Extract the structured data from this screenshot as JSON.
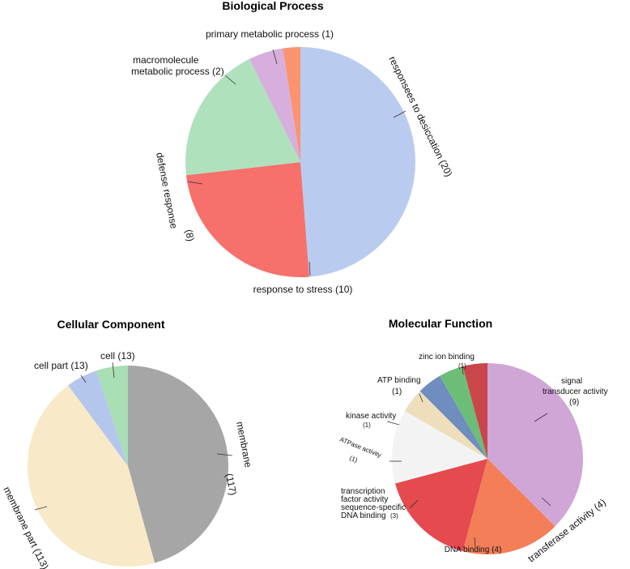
{
  "chart_data": [
    {
      "type": "pie",
      "title": "Biological Process",
      "slices": [
        {
          "label": "responsees to desiccation (20)",
          "value": 20,
          "color": "#b9ccef"
        },
        {
          "label": "response to stress (10)",
          "value": 10,
          "color": "#f7706b"
        },
        {
          "label": "defense response (8)",
          "value": 8,
          "color": "#afe1bd"
        },
        {
          "label": "macromolecule metabolic process (2)",
          "value": 2,
          "color": "#d6afdd"
        },
        {
          "label": "primary metabolic process (1)",
          "value": 1,
          "color": "#fb936e"
        }
      ]
    },
    {
      "type": "pie",
      "title": "Cellular Component",
      "slices": [
        {
          "label": "membrane (117)",
          "value": 117,
          "color": "#a6a6a6"
        },
        {
          "label": "membrane part (113)",
          "value": 113,
          "color": "#f8e9c9"
        },
        {
          "label": "cell part (13)",
          "value": 13,
          "color": "#b4c6ec"
        },
        {
          "label": "cell (13)",
          "value": 13,
          "color": "#a8dfb5"
        }
      ]
    },
    {
      "type": "pie",
      "title": "Molecular Function",
      "slices": [
        {
          "label": "signal transducer activity (9)",
          "value": 9,
          "color": "#cfa6d6"
        },
        {
          "label": "transferase activity (4)",
          "value": 4,
          "color": "#f37e58"
        },
        {
          "label": "DNA binding (4)",
          "value": 4,
          "color": "#e44a4e"
        },
        {
          "label": "transcription factor activity sequence-specific DNA binding (3)",
          "value": 3,
          "color": "#f3f3f3"
        },
        {
          "label": "ATPase activity (1)",
          "value": 1,
          "color": "#eedebb"
        },
        {
          "label": "kinase activity (1)",
          "value": 1,
          "color": "#6f8dbf"
        },
        {
          "label": "ATP binding (1)",
          "value": 1,
          "color": "#6cbd78"
        },
        {
          "label": "zinc ion binding (1)",
          "value": 1,
          "color": "#c9474a"
        }
      ]
    }
  ],
  "labels": {
    "bp": {
      "desiccation": "responsees to desiccation (20)",
      "stress": "response to stress (10)",
      "defense_a": "defense response",
      "defense_b": "(8)",
      "macro_a": "macromolecule",
      "macro_b": "metabolic process (2)",
      "primary": "primary metabolic process (1)"
    },
    "cc": {
      "membrane_a": "membrane",
      "membrane_b": "(117)",
      "membrane_part": "membrane part (113)",
      "cell_part": "cell part (13)",
      "cell": "cell (13)"
    },
    "mf": {
      "signal_a": "signal",
      "signal_b": "transducer activity",
      "signal_c": "(9)",
      "transferase": "transferase activity (4)",
      "dna": "DNA binding (4)",
      "tf_a": "transcription",
      "tf_b": "factor activity",
      "tf_c": "sequence-specific",
      "tf_d": "DNA binding",
      "tf_e": "(3)",
      "atpase_a": "ATPase activity",
      "atpase_b": "(1)",
      "kinase_a": "kinase activity",
      "kinase_b": "(1)",
      "atp_a": "ATP binding",
      "atp_b": "(1)",
      "zinc_a": "zinc ion binding",
      "zinc_b": "(1)"
    }
  }
}
